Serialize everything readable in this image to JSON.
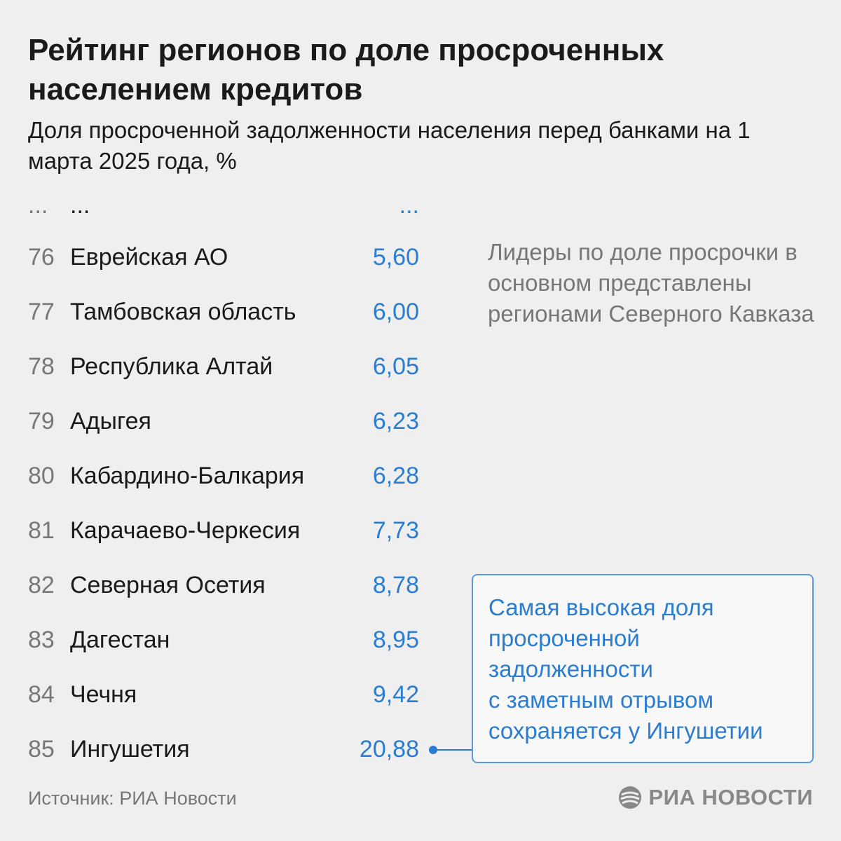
{
  "title": "Рейтинг регионов по доле просроченных населением кредитов",
  "subtitle": "Доля просроченной задолженности населения перед банками на 1 марта 2025 года, %",
  "ellipsis": {
    "rank": "...",
    "name": "...",
    "value": "..."
  },
  "rows": [
    {
      "rank": "76",
      "name": "Еврейская АО",
      "value": "5,60"
    },
    {
      "rank": "77",
      "name": "Тамбовская область",
      "value": "6,00"
    },
    {
      "rank": "78",
      "name": "Республика Алтай",
      "value": "6,05"
    },
    {
      "rank": "79",
      "name": "Адыгея",
      "value": "6,23"
    },
    {
      "rank": "80",
      "name": "Кабардино-Балкария",
      "value": "6,28"
    },
    {
      "rank": "81",
      "name": "Карачаево-Черкесия",
      "value": "7,73"
    },
    {
      "rank": "82",
      "name": "Северная Осетия",
      "value": "8,78"
    },
    {
      "rank": "83",
      "name": "Дагестан",
      "value": "8,95"
    },
    {
      "rank": "84",
      "name": "Чечня",
      "value": "9,42"
    },
    {
      "rank": "85",
      "name": "Ингушетия",
      "value": "20,88"
    }
  ],
  "note": "Лидеры по доле просрочки в основном представлены регионами Северного Кавказа",
  "callout": "Самая высокая доля\nпросроченной\nзадолженности\nс заметным отрывом\nсохраняется у Ингушетии",
  "source": "Источник: РИА Новости",
  "logo": {
    "text": "РИА НОВОСТИ",
    "icon": "ria-logo-icon"
  },
  "colors": {
    "accent": "#2a7dd1",
    "muted": "#777777",
    "text": "#1a1a1a",
    "background": "#efefef"
  }
}
